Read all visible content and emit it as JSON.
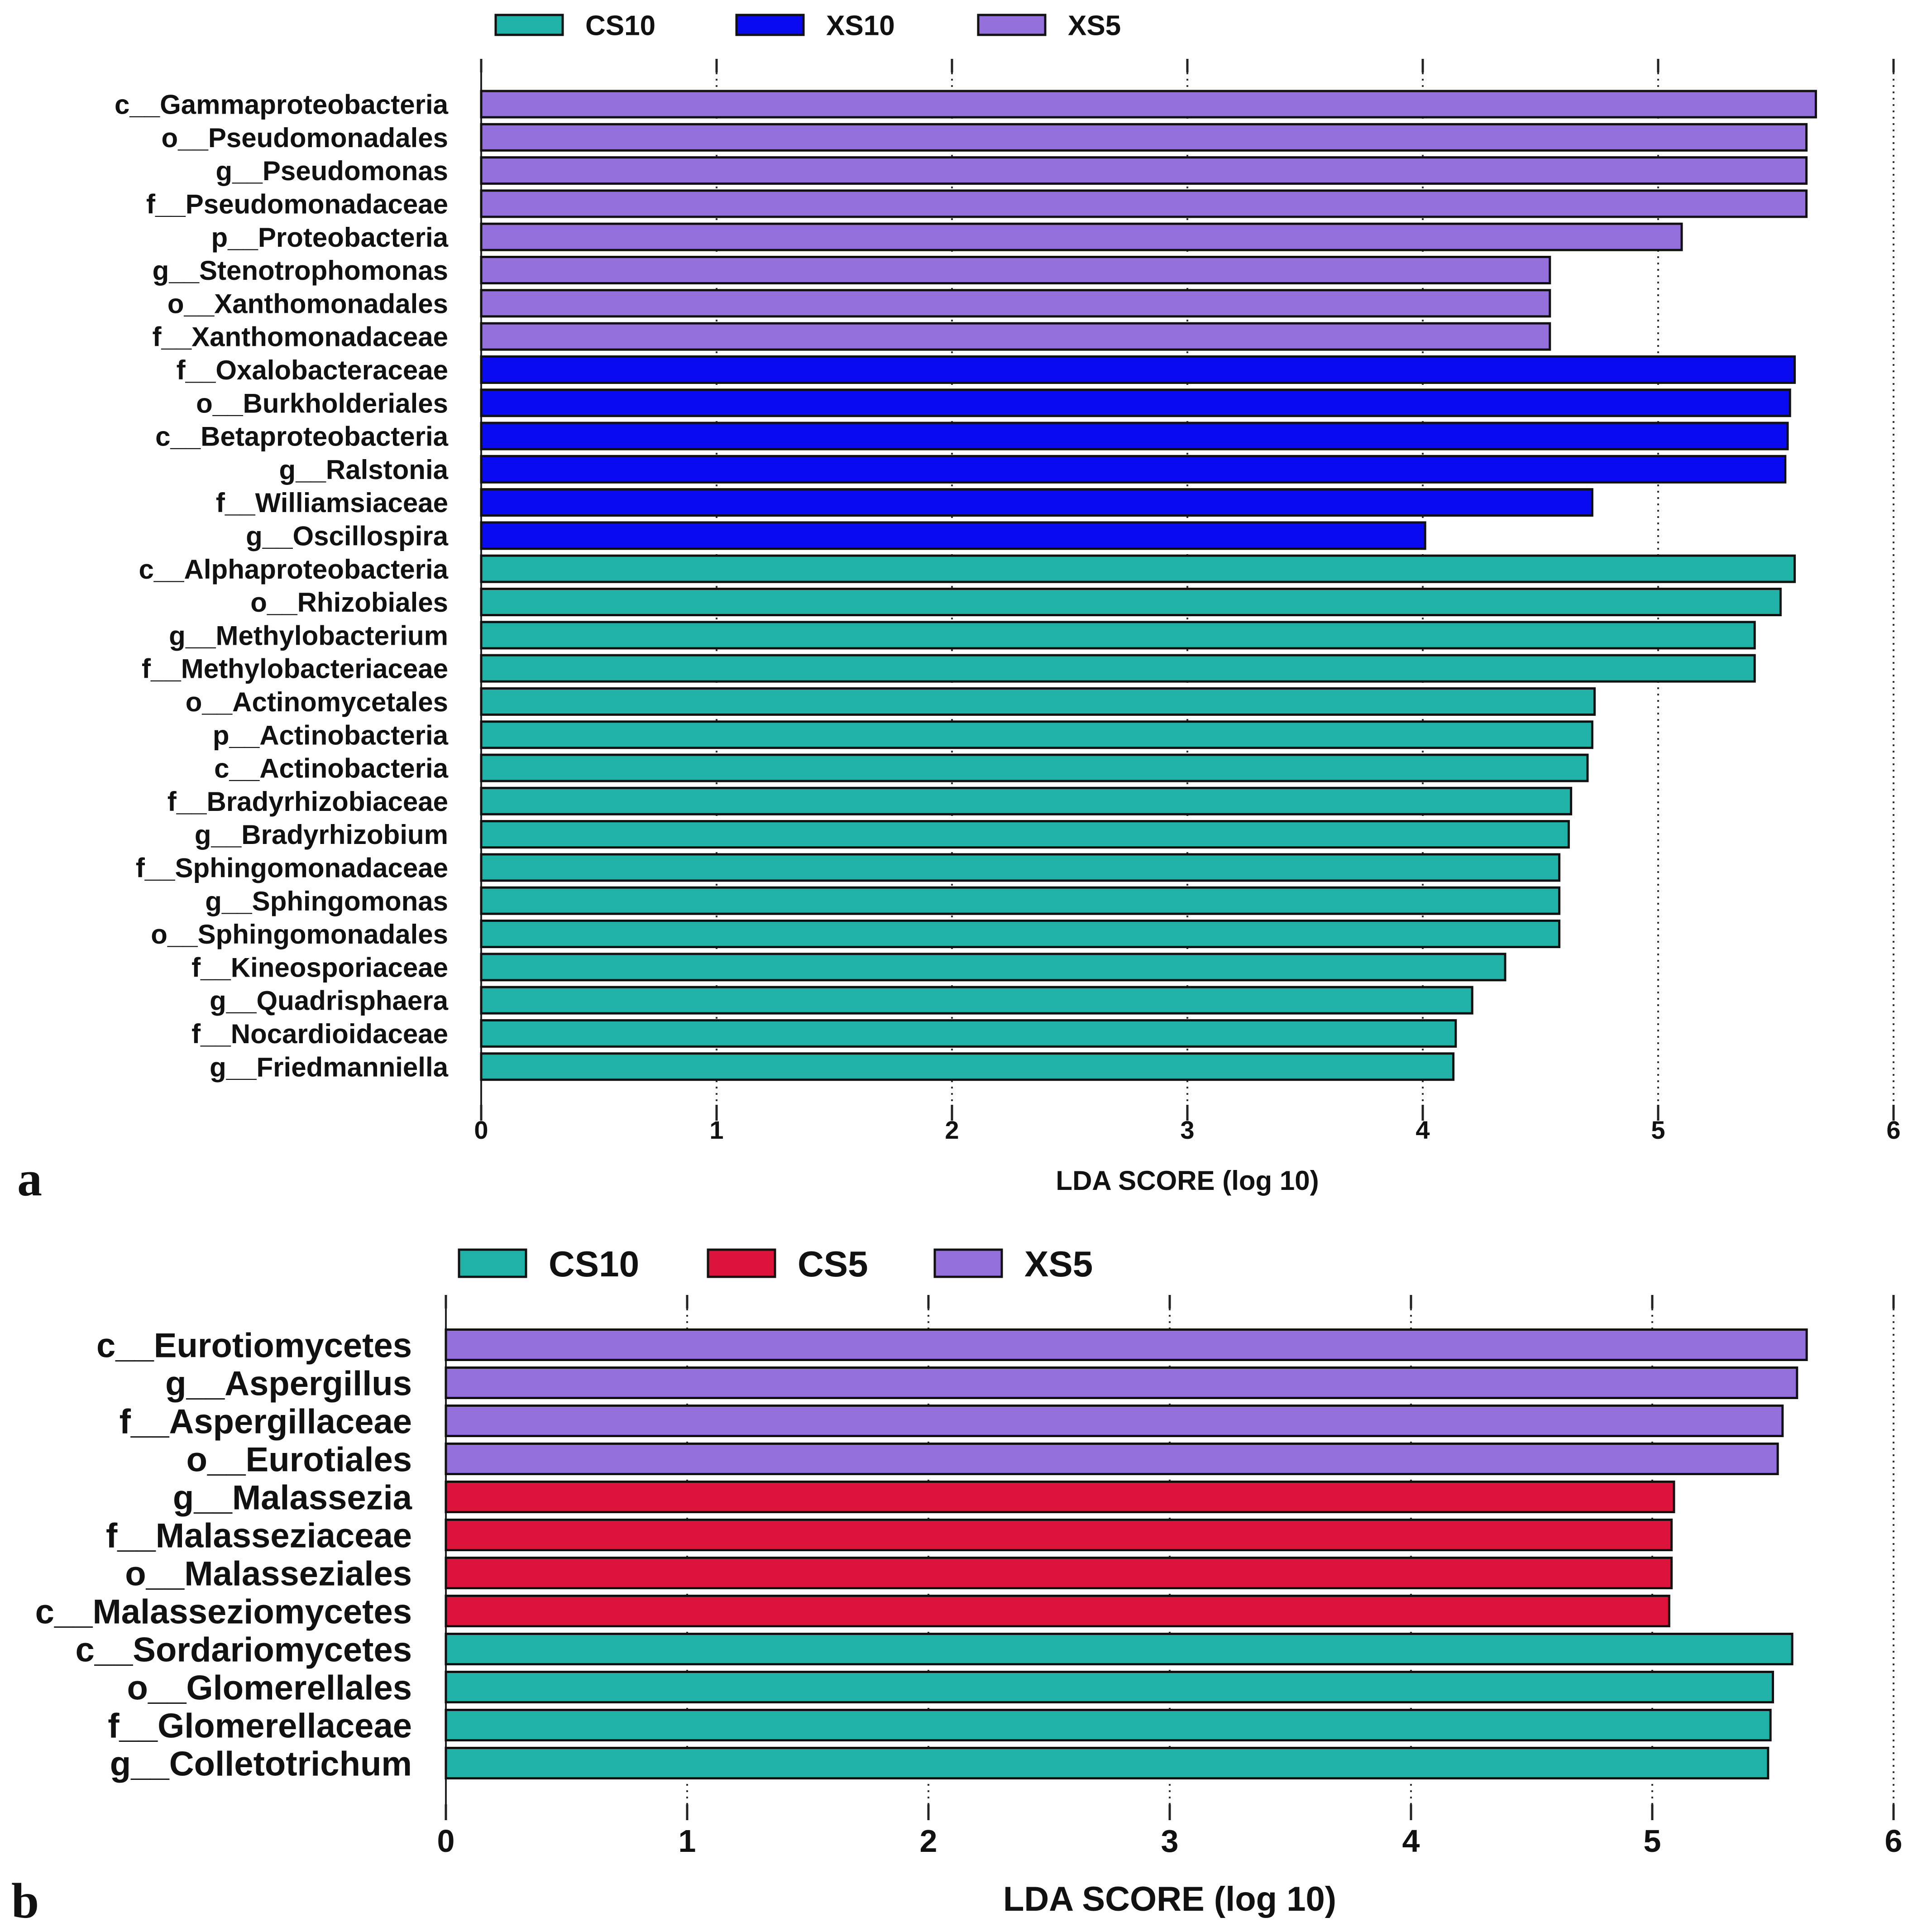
{
  "colors": {
    "CS10": "#20B2A6",
    "XS10": "#0A0AF0",
    "XS5": "#9370DB",
    "CS5": "#DC143C"
  },
  "chart_data": [
    {
      "panel": "a",
      "type": "bar",
      "orientation": "horizontal",
      "xlabel": "LDA SCORE (log 10)",
      "xlim": [
        0,
        6
      ],
      "ticks": [
        "0",
        "1",
        "2",
        "3",
        "4",
        "5",
        "6"
      ],
      "grid": true,
      "legend_position": "top",
      "legend": [
        "CS10",
        "XS10",
        "XS5"
      ],
      "bars": [
        {
          "label": "c__Gammaproteobacteria",
          "value": 5.67,
          "group": "XS5"
        },
        {
          "label": "o__Pseudomonadales",
          "value": 5.63,
          "group": "XS5"
        },
        {
          "label": "g__Pseudomonas",
          "value": 5.63,
          "group": "XS5"
        },
        {
          "label": "f__Pseudomonadaceae",
          "value": 5.63,
          "group": "XS5"
        },
        {
          "label": "p__Proteobacteria",
          "value": 5.1,
          "group": "XS5"
        },
        {
          "label": "g__Stenotrophomonas",
          "value": 4.54,
          "group": "XS5"
        },
        {
          "label": "o__Xanthomonadales",
          "value": 4.54,
          "group": "XS5"
        },
        {
          "label": "f__Xanthomonadaceae",
          "value": 4.54,
          "group": "XS5"
        },
        {
          "label": "f__Oxalobacteraceae",
          "value": 5.58,
          "group": "XS10"
        },
        {
          "label": "o__Burkholderiales",
          "value": 5.56,
          "group": "XS10"
        },
        {
          "label": "c__Betaproteobacteria",
          "value": 5.55,
          "group": "XS10"
        },
        {
          "label": "g__Ralstonia",
          "value": 5.54,
          "group": "XS10"
        },
        {
          "label": "f__Williamsiaceae",
          "value": 4.72,
          "group": "XS10"
        },
        {
          "label": "g__Oscillospira",
          "value": 4.01,
          "group": "XS10"
        },
        {
          "label": "c__Alphaproteobacteria",
          "value": 5.58,
          "group": "CS10"
        },
        {
          "label": "o__Rhizobiales",
          "value": 5.52,
          "group": "CS10"
        },
        {
          "label": "g__Methylobacterium",
          "value": 5.41,
          "group": "CS10"
        },
        {
          "label": "f__Methylobacteriaceae",
          "value": 5.41,
          "group": "CS10"
        },
        {
          "label": "o__Actinomycetales",
          "value": 4.73,
          "group": "CS10"
        },
        {
          "label": "p__Actinobacteria",
          "value": 4.72,
          "group": "CS10"
        },
        {
          "label": "c__Actinobacteria",
          "value": 4.7,
          "group": "CS10"
        },
        {
          "label": "f__Bradyrhizobiaceae",
          "value": 4.63,
          "group": "CS10"
        },
        {
          "label": "g__Bradyrhizobium",
          "value": 4.62,
          "group": "CS10"
        },
        {
          "label": "f__Sphingomonadaceae",
          "value": 4.58,
          "group": "CS10"
        },
        {
          "label": "g__Sphingomonas",
          "value": 4.58,
          "group": "CS10"
        },
        {
          "label": "o__Sphingomonadales",
          "value": 4.58,
          "group": "CS10"
        },
        {
          "label": "f__Kineosporiaceae",
          "value": 4.35,
          "group": "CS10"
        },
        {
          "label": "g__Quadrisphaera",
          "value": 4.21,
          "group": "CS10"
        },
        {
          "label": "f__Nocardioidaceae",
          "value": 4.14,
          "group": "CS10"
        },
        {
          "label": "g__Friedmanniella",
          "value": 4.13,
          "group": "CS10"
        }
      ]
    },
    {
      "panel": "b",
      "type": "bar",
      "orientation": "horizontal",
      "xlabel": "LDA SCORE (log 10)",
      "xlim": [
        0,
        6
      ],
      "ticks": [
        "0",
        "1",
        "2",
        "3",
        "4",
        "5",
        "6"
      ],
      "grid": true,
      "legend_position": "top",
      "legend": [
        "CS10",
        "CS5",
        "XS5"
      ],
      "bars": [
        {
          "label": "c__Eurotiomycetes",
          "value": 5.64,
          "group": "XS5"
        },
        {
          "label": "g__Aspergillus",
          "value": 5.6,
          "group": "XS5"
        },
        {
          "label": "f__Aspergillaceae",
          "value": 5.54,
          "group": "XS5"
        },
        {
          "label": "o__Eurotiales",
          "value": 5.52,
          "group": "XS5"
        },
        {
          "label": "g__Malassezia",
          "value": 5.09,
          "group": "CS5"
        },
        {
          "label": "f__Malasseziaceae",
          "value": 5.08,
          "group": "CS5"
        },
        {
          "label": "o__Malasseziales",
          "value": 5.08,
          "group": "CS5"
        },
        {
          "label": "c__Malasseziomycetes",
          "value": 5.07,
          "group": "CS5"
        },
        {
          "label": "c__Sordariomycetes",
          "value": 5.58,
          "group": "CS10"
        },
        {
          "label": "o__Glomerellales",
          "value": 5.5,
          "group": "CS10"
        },
        {
          "label": "f__Glomerellaceae",
          "value": 5.49,
          "group": "CS10"
        },
        {
          "label": "g__Colletotrichum",
          "value": 5.48,
          "group": "CS10"
        }
      ]
    }
  ]
}
